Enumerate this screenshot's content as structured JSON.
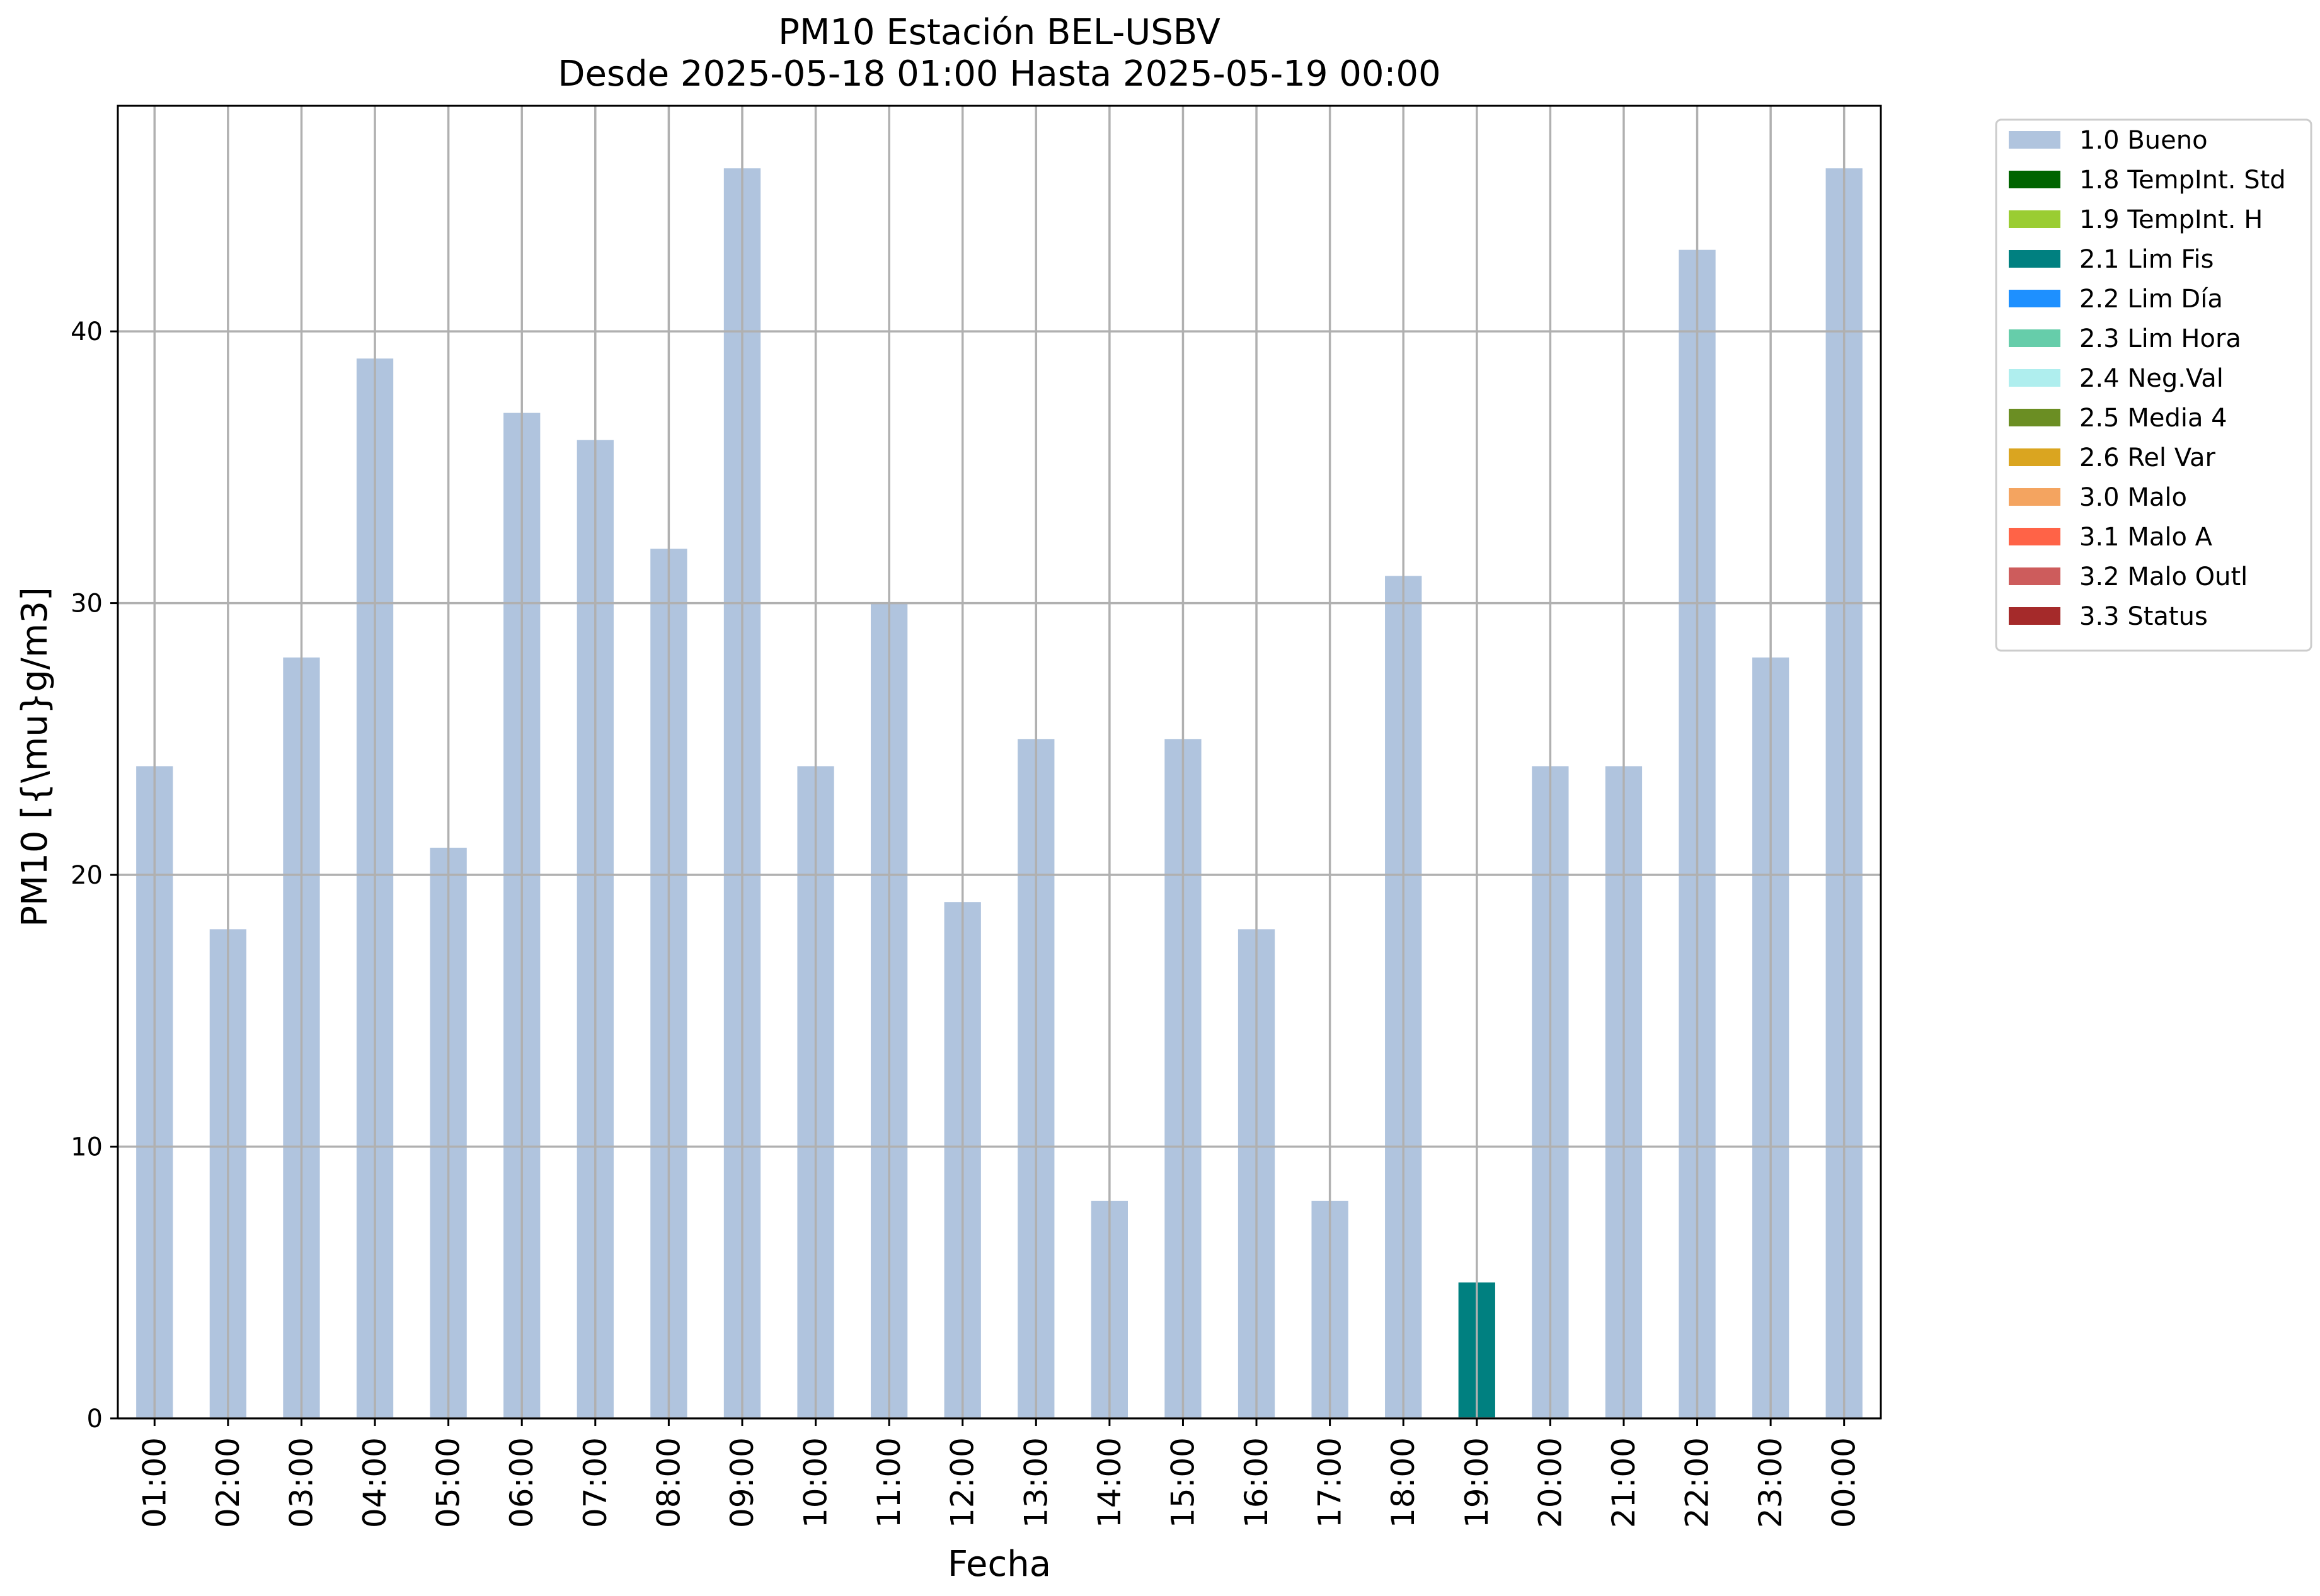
{
  "chart_data": {
    "type": "bar",
    "title_line1": "PM10 Estación BEL-USBV",
    "title_line2": "Desde 2025-05-18 01:00 Hasta 2025-05-19 00:00",
    "xlabel": "Fecha",
    "ylabel": "PM10 [{\\mu}g/m3]",
    "ylim": [
      0,
      48.3
    ],
    "yticks": [
      0,
      10,
      20,
      30,
      40
    ],
    "grid": true,
    "legend_position": "outside-top-right",
    "categories": [
      "01:00",
      "02:00",
      "03:00",
      "04:00",
      "05:00",
      "06:00",
      "07:00",
      "08:00",
      "09:00",
      "10:00",
      "11:00",
      "12:00",
      "13:00",
      "14:00",
      "15:00",
      "16:00",
      "17:00",
      "18:00",
      "19:00",
      "20:00",
      "21:00",
      "22:00",
      "23:00",
      "00:00"
    ],
    "values": [
      24,
      18,
      28,
      39,
      21,
      37,
      36,
      32,
      46,
      24,
      30,
      19,
      25,
      8,
      25,
      18,
      8,
      31,
      5,
      24,
      24,
      43,
      28,
      46
    ],
    "flags": [
      "1.0 Bueno",
      "1.0 Bueno",
      "1.0 Bueno",
      "1.0 Bueno",
      "1.0 Bueno",
      "1.0 Bueno",
      "1.0 Bueno",
      "1.0 Bueno",
      "1.0 Bueno",
      "1.0 Bueno",
      "1.0 Bueno",
      "1.0 Bueno",
      "1.0 Bueno",
      "1.0 Bueno",
      "1.0 Bueno",
      "1.0 Bueno",
      "1.0 Bueno",
      "1.0 Bueno",
      "2.1 Lim Fis",
      "1.0 Bueno",
      "1.0 Bueno",
      "1.0 Bueno",
      "1.0 Bueno",
      "1.0 Bueno"
    ],
    "legend": [
      {
        "name": "1.0 Bueno",
        "color": "#b0c4de"
      },
      {
        "name": "1.8 TempInt. Std",
        "color": "#006400"
      },
      {
        "name": "1.9 TempInt. H",
        "color": "#9acd32"
      },
      {
        "name": "2.1 Lim Fis",
        "color": "#008080"
      },
      {
        "name": "2.2 Lim Día",
        "color": "#1e90ff"
      },
      {
        "name": "2.3 Lim Hora",
        "color": "#66cdaa"
      },
      {
        "name": "2.4 Neg.Val",
        "color": "#afeeee"
      },
      {
        "name": "2.5 Media 4",
        "color": "#6b8e23"
      },
      {
        "name": "2.6 Rel Var",
        "color": "#daa520"
      },
      {
        "name": "3.0 Malo",
        "color": "#f4a460"
      },
      {
        "name": "3.1 Malo A",
        "color": "#ff6347"
      },
      {
        "name": "3.2 Malo Outl",
        "color": "#cd5c5c"
      },
      {
        "name": "3.3 Status",
        "color": "#a52a2a"
      }
    ]
  }
}
